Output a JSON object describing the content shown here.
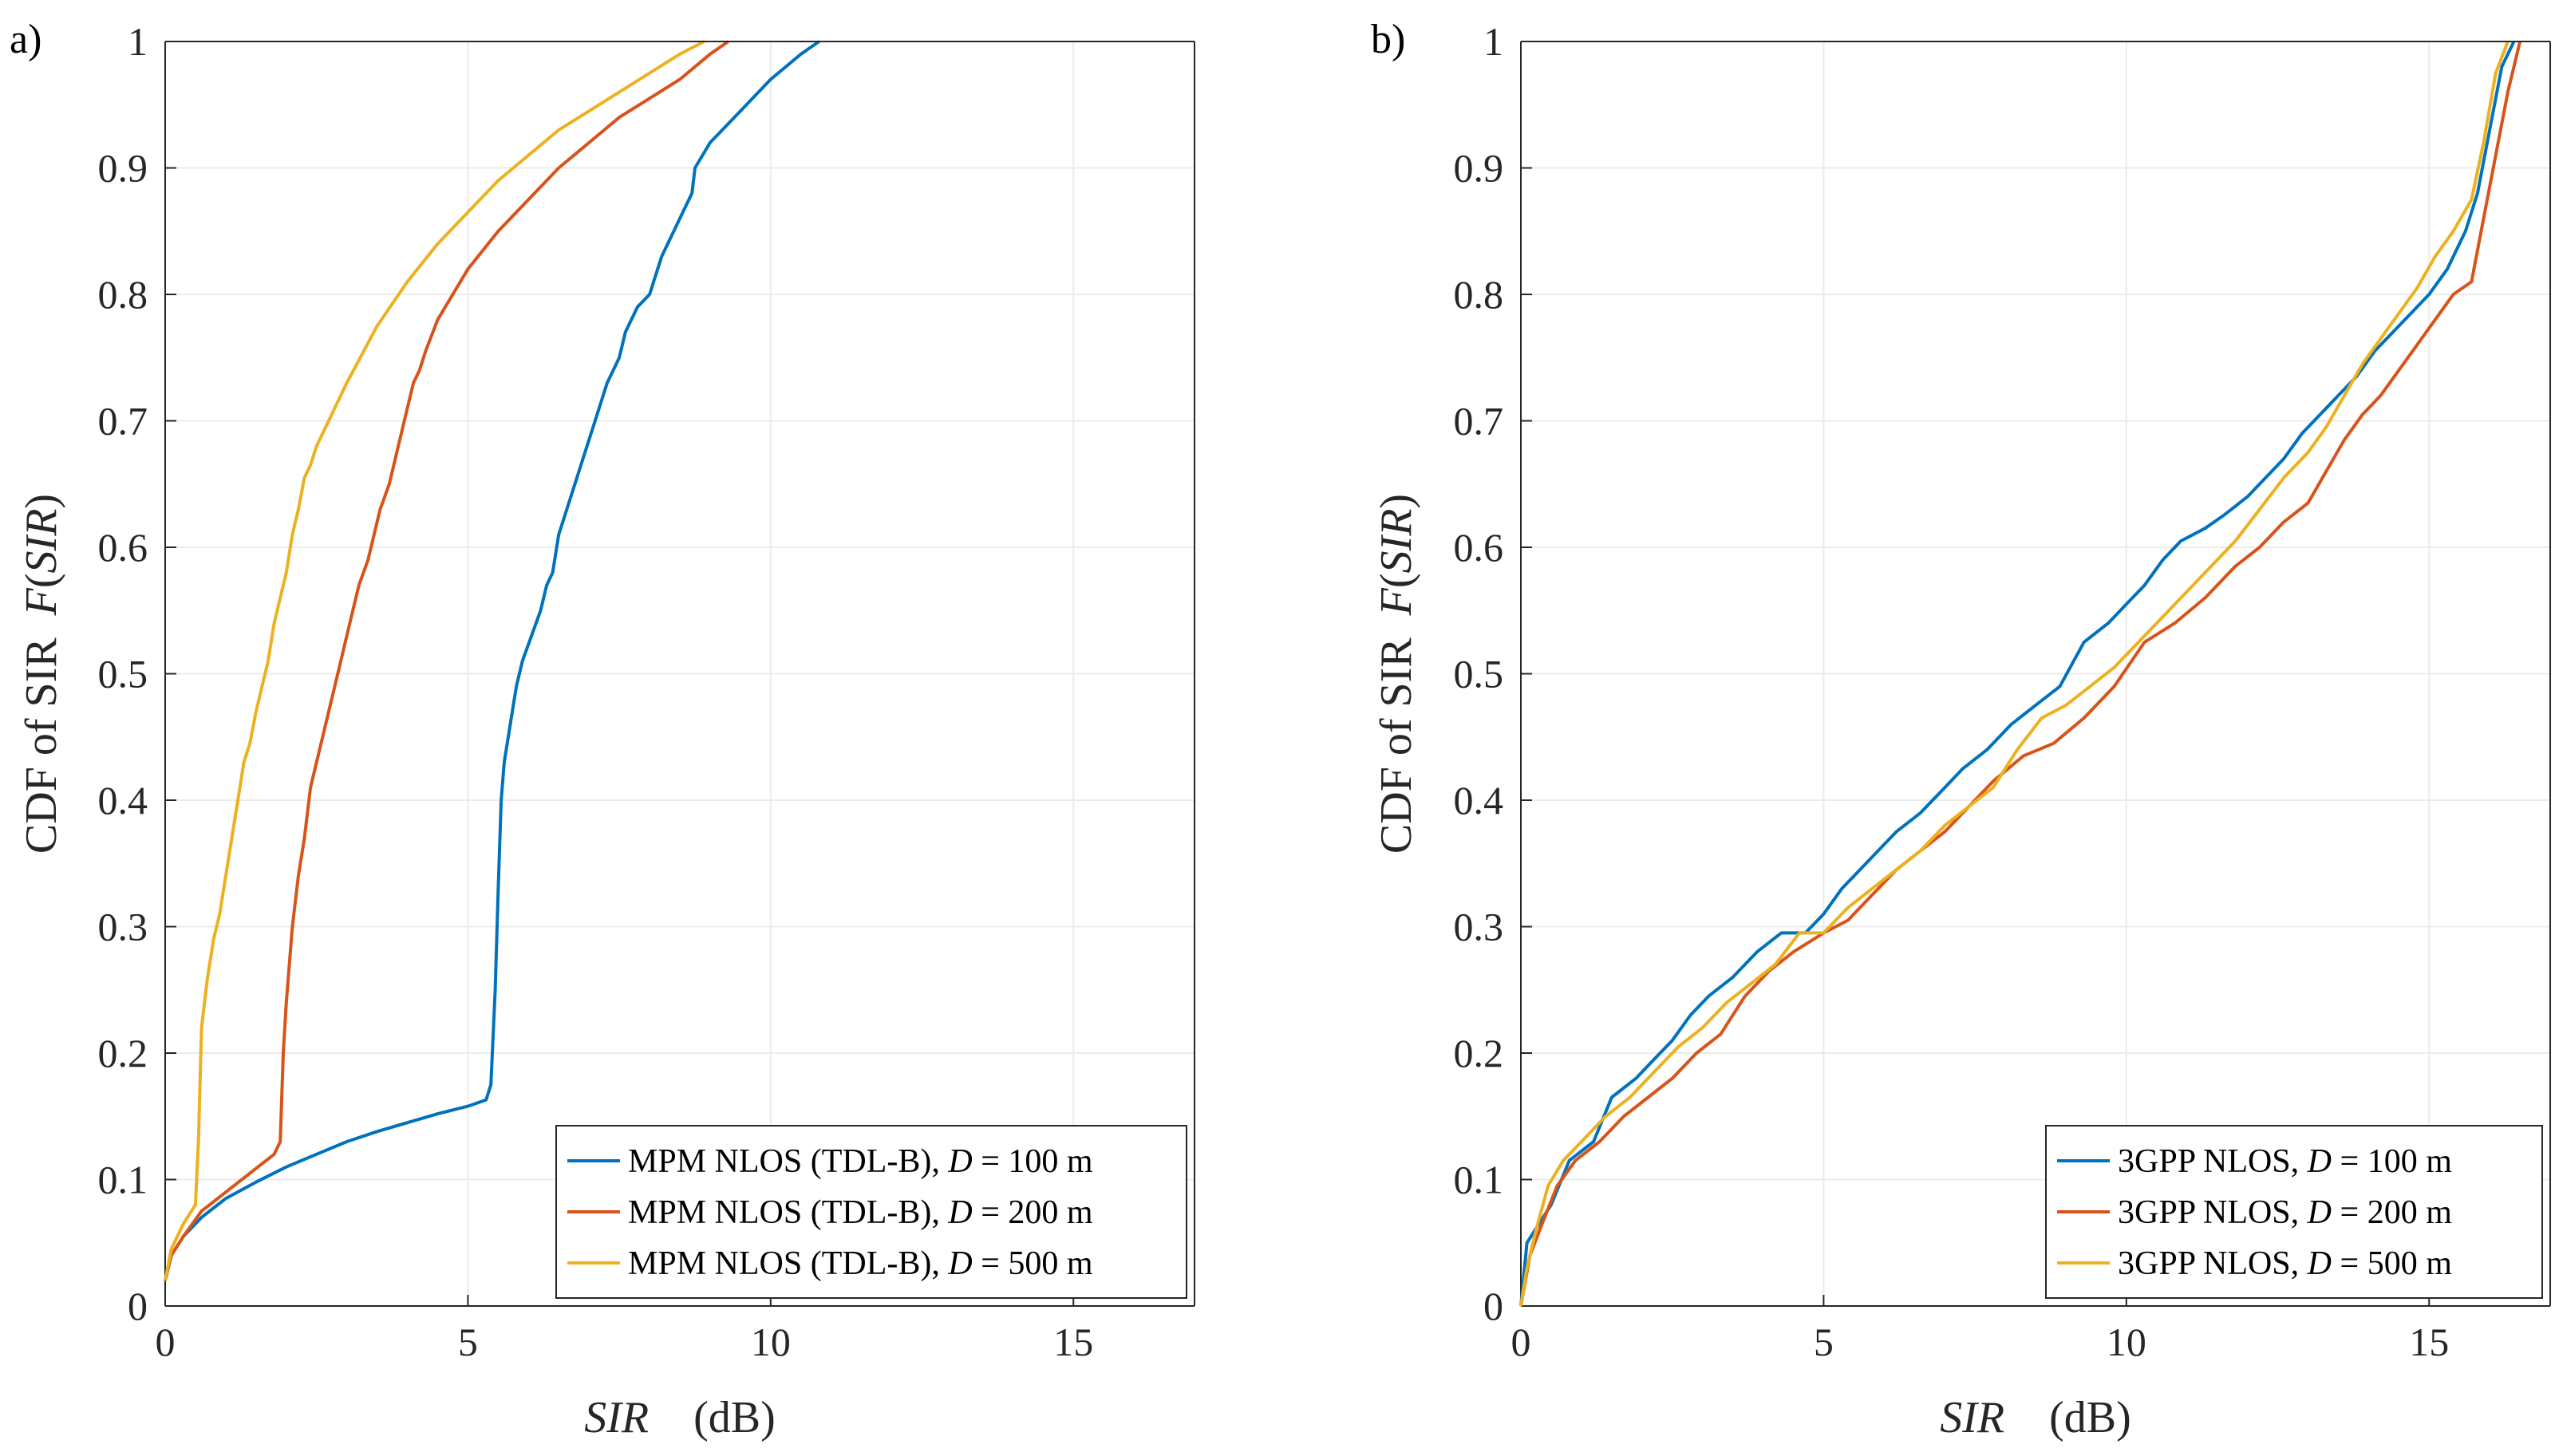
{
  "chart_data": [
    {
      "type": "line",
      "panel_label": "a)",
      "title": "",
      "xlabel_italic": "SIR",
      "xlabel_unit": "(dB)",
      "ylabel_plain": "CDF of SIR",
      "ylabel_func": "F",
      "ylabel_arg": "SIR",
      "xlim": [
        0,
        17
      ],
      "ylim": [
        0,
        1
      ],
      "xticks": [
        0,
        5,
        10,
        15
      ],
      "yticks": [
        0,
        0.1,
        0.2,
        0.3,
        0.4,
        0.5,
        0.6,
        0.7,
        0.8,
        0.9,
        1
      ],
      "grid": true,
      "legend_position": "bottom-right",
      "series": [
        {
          "name": "MPM NLOS (TDL-B), D = 100 m",
          "legend_prefix": "MPM NLOS (TDL-B),",
          "legend_var": "D",
          "legend_suffix": "= 100 m",
          "color": "#0072BD",
          "x": [
            0,
            0.1,
            0.3,
            0.6,
            1.0,
            1.5,
            2.0,
            2.5,
            3.0,
            3.5,
            4.0,
            4.5,
            5.0,
            5.3,
            5.38,
            5.45,
            5.5,
            5.55,
            5.6,
            5.7,
            5.8,
            5.9,
            6.05,
            6.2,
            6.3,
            6.4,
            6.5,
            6.7,
            6.9,
            7.1,
            7.3,
            7.5,
            7.6,
            7.8,
            8.0,
            8.2,
            8.4,
            8.5,
            8.6,
            8.7,
            8.75,
            9.0,
            9.5,
            10.0,
            10.5,
            10.8
          ],
          "y": [
            0.02,
            0.04,
            0.055,
            0.07,
            0.085,
            0.098,
            0.11,
            0.12,
            0.13,
            0.138,
            0.145,
            0.152,
            0.158,
            0.163,
            0.175,
            0.25,
            0.33,
            0.4,
            0.43,
            0.46,
            0.49,
            0.51,
            0.53,
            0.55,
            0.57,
            0.58,
            0.61,
            0.64,
            0.67,
            0.7,
            0.73,
            0.75,
            0.77,
            0.79,
            0.8,
            0.83,
            0.85,
            0.86,
            0.87,
            0.88,
            0.9,
            0.92,
            0.945,
            0.97,
            0.99,
            1.0
          ]
        },
        {
          "name": "MPM NLOS (TDL-B), D = 200 m",
          "legend_prefix": "MPM NLOS (TDL-B),",
          "legend_var": "D",
          "legend_suffix": "= 200 m",
          "color": "#D95319",
          "x": [
            0,
            0.1,
            0.3,
            0.6,
            1.0,
            1.4,
            1.8,
            1.9,
            1.95,
            2.0,
            2.05,
            2.1,
            2.2,
            2.3,
            2.4,
            2.5,
            2.6,
            2.7,
            2.8,
            2.9,
            3.0,
            3.1,
            3.2,
            3.35,
            3.45,
            3.55,
            3.7,
            3.8,
            3.9,
            4.0,
            4.1,
            4.2,
            4.3,
            4.5,
            5.0,
            5.5,
            6.0,
            6.5,
            7.0,
            7.5,
            8.0,
            8.5,
            9.0,
            9.3
          ],
          "y": [
            0.02,
            0.04,
            0.055,
            0.075,
            0.09,
            0.105,
            0.12,
            0.13,
            0.2,
            0.24,
            0.27,
            0.3,
            0.34,
            0.37,
            0.41,
            0.43,
            0.45,
            0.47,
            0.49,
            0.51,
            0.53,
            0.55,
            0.57,
            0.59,
            0.61,
            0.63,
            0.65,
            0.67,
            0.69,
            0.71,
            0.73,
            0.74,
            0.755,
            0.78,
            0.82,
            0.85,
            0.875,
            0.9,
            0.92,
            0.94,
            0.955,
            0.97,
            0.99,
            1.0
          ]
        },
        {
          "name": "MPM NLOS (TDL-B), D = 500 m",
          "legend_prefix": "MPM NLOS (TDL-B),",
          "legend_var": "D",
          "legend_suffix": "= 500 m",
          "color": "#EDB120",
          "x": [
            0,
            0.1,
            0.3,
            0.5,
            0.55,
            0.6,
            0.7,
            0.8,
            0.9,
            1.0,
            1.1,
            1.2,
            1.3,
            1.4,
            1.5,
            1.6,
            1.7,
            1.8,
            1.9,
            2.0,
            2.1,
            2.2,
            2.3,
            2.4,
            2.5,
            3.0,
            3.5,
            4.0,
            4.5,
            5.0,
            5.5,
            6.0,
            6.5,
            7.0,
            7.5,
            8.0,
            8.5,
            8.9
          ],
          "y": [
            0.02,
            0.045,
            0.065,
            0.08,
            0.13,
            0.22,
            0.26,
            0.29,
            0.31,
            0.34,
            0.37,
            0.4,
            0.43,
            0.445,
            0.47,
            0.49,
            0.51,
            0.54,
            0.56,
            0.58,
            0.61,
            0.63,
            0.655,
            0.665,
            0.68,
            0.73,
            0.775,
            0.81,
            0.84,
            0.865,
            0.89,
            0.91,
            0.93,
            0.945,
            0.96,
            0.975,
            0.99,
            1.0
          ]
        }
      ]
    },
    {
      "type": "line",
      "panel_label": "b)",
      "title": "",
      "xlabel_italic": "SIR",
      "xlabel_unit": "(dB)",
      "ylabel_plain": "CDF of SIR",
      "ylabel_func": "F",
      "ylabel_arg": "SIR",
      "xlim": [
        0,
        17
      ],
      "ylim": [
        0,
        1
      ],
      "xticks": [
        0,
        5,
        10,
        15
      ],
      "yticks": [
        0,
        0.1,
        0.2,
        0.3,
        0.4,
        0.5,
        0.6,
        0.7,
        0.8,
        0.9,
        1
      ],
      "grid": true,
      "legend_position": "bottom-right",
      "series": [
        {
          "name": "3GPP NLOS, D = 100 m",
          "legend_prefix": "3GPP NLOS,",
          "legend_var": "D",
          "legend_suffix": "= 100 m",
          "color": "#0072BD",
          "x": [
            0,
            0.1,
            0.3,
            0.5,
            0.8,
            1.2,
            1.5,
            1.9,
            2.2,
            2.5,
            2.8,
            3.1,
            3.5,
            3.9,
            4.3,
            4.7,
            5.0,
            5.3,
            5.6,
            5.9,
            6.2,
            6.6,
            7.0,
            7.3,
            7.7,
            8.1,
            8.5,
            8.9,
            9.3,
            9.7,
            10.0,
            10.3,
            10.6,
            10.9,
            11.3,
            11.6,
            12.0,
            12.3,
            12.6,
            12.9,
            13.2,
            13.5,
            13.8,
            14.1,
            14.4,
            14.7,
            15.0,
            15.3,
            15.6,
            15.8,
            16.0,
            16.2,
            16.4
          ],
          "y": [
            0,
            0.05,
            0.065,
            0.08,
            0.115,
            0.13,
            0.165,
            0.18,
            0.195,
            0.21,
            0.23,
            0.245,
            0.26,
            0.28,
            0.295,
            0.295,
            0.31,
            0.33,
            0.345,
            0.36,
            0.375,
            0.39,
            0.41,
            0.425,
            0.44,
            0.46,
            0.475,
            0.49,
            0.525,
            0.54,
            0.555,
            0.57,
            0.59,
            0.605,
            0.615,
            0.625,
            0.64,
            0.655,
            0.67,
            0.69,
            0.705,
            0.72,
            0.735,
            0.755,
            0.77,
            0.785,
            0.8,
            0.82,
            0.85,
            0.88,
            0.93,
            0.98,
            1.0
          ]
        },
        {
          "name": "3GPP NLOS, D = 200 m",
          "legend_prefix": "3GPP NLOS,",
          "legend_var": "D",
          "legend_suffix": "= 200 m",
          "color": "#D95319",
          "x": [
            0,
            0.15,
            0.35,
            0.6,
            0.9,
            1.3,
            1.7,
            2.1,
            2.5,
            2.9,
            3.3,
            3.7,
            4.1,
            4.5,
            5.0,
            5.4,
            5.8,
            6.2,
            6.6,
            7.0,
            7.4,
            7.8,
            8.3,
            8.8,
            9.3,
            9.8,
            10.3,
            10.8,
            11.3,
            11.8,
            12.2,
            12.6,
            13.0,
            13.3,
            13.6,
            13.9,
            14.2,
            14.5,
            14.8,
            15.1,
            15.4,
            15.7,
            15.9,
            16.1,
            16.3,
            16.5
          ],
          "y": [
            0,
            0.04,
            0.065,
            0.095,
            0.115,
            0.13,
            0.15,
            0.165,
            0.18,
            0.2,
            0.215,
            0.245,
            0.265,
            0.28,
            0.295,
            0.305,
            0.325,
            0.345,
            0.36,
            0.375,
            0.395,
            0.415,
            0.435,
            0.445,
            0.465,
            0.49,
            0.525,
            0.54,
            0.56,
            0.585,
            0.6,
            0.62,
            0.635,
            0.66,
            0.685,
            0.705,
            0.72,
            0.74,
            0.76,
            0.78,
            0.8,
            0.81,
            0.86,
            0.91,
            0.96,
            1.0
          ]
        },
        {
          "name": "3GPP NLOS, D = 500 m",
          "legend_prefix": "3GPP NLOS,",
          "legend_var": "D",
          "legend_suffix": "= 500 m",
          "color": "#EDB120",
          "x": [
            0,
            0.1,
            0.25,
            0.45,
            0.7,
            1.0,
            1.4,
            1.8,
            2.2,
            2.6,
            3.0,
            3.4,
            3.8,
            4.2,
            4.6,
            5.0,
            5.4,
            5.8,
            6.2,
            6.6,
            7.0,
            7.4,
            7.8,
            8.2,
            8.6,
            9.0,
            9.4,
            9.8,
            10.2,
            10.6,
            11.0,
            11.4,
            11.8,
            12.2,
            12.6,
            13.0,
            13.3,
            13.6,
            13.9,
            14.2,
            14.5,
            14.8,
            15.1,
            15.4,
            15.7,
            15.9,
            16.1,
            16.3
          ],
          "y": [
            0,
            0.03,
            0.06,
            0.095,
            0.115,
            0.13,
            0.15,
            0.165,
            0.185,
            0.205,
            0.22,
            0.24,
            0.255,
            0.27,
            0.295,
            0.295,
            0.315,
            0.33,
            0.345,
            0.36,
            0.38,
            0.395,
            0.41,
            0.44,
            0.465,
            0.475,
            0.49,
            0.505,
            0.525,
            0.545,
            0.565,
            0.585,
            0.605,
            0.63,
            0.655,
            0.675,
            0.695,
            0.72,
            0.745,
            0.765,
            0.785,
            0.805,
            0.83,
            0.85,
            0.875,
            0.92,
            0.975,
            1.0
          ]
        }
      ]
    }
  ]
}
